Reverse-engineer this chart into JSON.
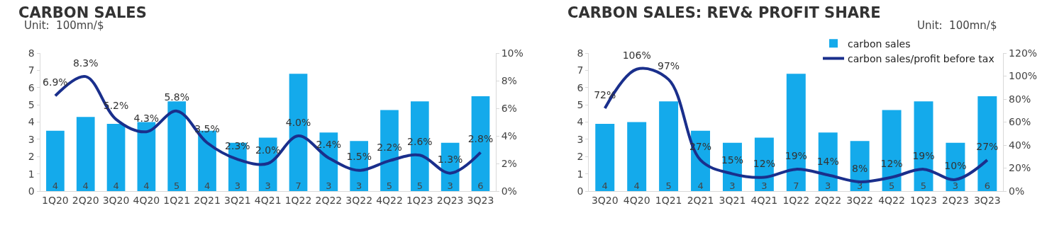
{
  "chart_data": [
    {
      "type": "bar",
      "title": "CARBON SALES",
      "annotations": [
        "Unit:  100mn/$"
      ],
      "categories": [
        "1Q20",
        "2Q20",
        "3Q20",
        "4Q20",
        "1Q21",
        "2Q21",
        "3Q21",
        "4Q21",
        "1Q22",
        "2Q22",
        "3Q22",
        "4Q22",
        "1Q23",
        "2Q23",
        "3Q23"
      ],
      "series": [
        {
          "color": "#14aaeb",
          "values": [
            3.5,
            4.3,
            3.9,
            4.0,
            5.2,
            3.5,
            2.8,
            3.1,
            6.8,
            3.4,
            2.9,
            4.7,
            5.2,
            2.8,
            5.5
          ],
          "value_labels": [
            "4",
            "4",
            "4",
            "4",
            "5",
            "4",
            "3",
            "3",
            "7",
            "3",
            "3",
            "5",
            "5",
            "3",
            "6"
          ]
        },
        {
          "type": "line",
          "axis": "y2",
          "color": "#1a2f8c",
          "values": [
            6.9,
            8.3,
            5.2,
            4.3,
            5.8,
            3.5,
            2.3,
            2.0,
            4.0,
            2.4,
            1.5,
            2.2,
            2.6,
            1.3,
            2.8
          ],
          "value_labels": [
            "6.9%",
            "8.3%",
            "5.2%",
            "4.3%",
            "5.8%",
            "3.5%",
            "2.3%",
            "2.0%",
            "4.0%",
            "2.4%",
            "1.5%",
            "2.2%",
            "2.6%",
            "1.3%",
            "2.8%"
          ]
        }
      ],
      "ylim": [
        0,
        8
      ],
      "yticks": [
        0,
        1,
        2,
        3,
        4,
        5,
        6,
        7,
        8
      ],
      "y2lim": [
        0,
        10
      ],
      "y2ticks": [
        {
          "value": 0,
          "label": "0%"
        },
        {
          "value": 2,
          "label": "2%"
        },
        {
          "value": 4,
          "label": "4%"
        },
        {
          "value": 6,
          "label": "6%"
        },
        {
          "value": 8,
          "label": "8%"
        },
        {
          "value": 10,
          "label": "10%"
        }
      ],
      "legend": false
    },
    {
      "type": "bar",
      "title": "CARBON SALES: REV& PROFIT SHARE",
      "annotations": [
        "Unit:  100mn/$"
      ],
      "categories": [
        "3Q20",
        "4Q20",
        "1Q21",
        "2Q21",
        "3Q21",
        "4Q21",
        "1Q22",
        "2Q22",
        "3Q22",
        "4Q22",
        "1Q23",
        "2Q23",
        "3Q23"
      ],
      "series": [
        {
          "name": "carbon sales",
          "color": "#14aaeb",
          "values": [
            3.9,
            4.0,
            5.2,
            3.5,
            2.8,
            3.1,
            6.8,
            3.4,
            2.9,
            4.7,
            5.2,
            2.8,
            5.5
          ],
          "value_labels": [
            "4",
            "4",
            "5",
            "4",
            "3",
            "3",
            "7",
            "3",
            "3",
            "5",
            "5",
            "3",
            "6"
          ]
        },
        {
          "type": "line",
          "axis": "y2",
          "name": "carbon sales/profit before tax",
          "color": "#1a2f8c",
          "values": [
            72,
            106,
            97,
            27,
            15,
            12,
            19,
            14,
            8,
            12,
            19,
            10,
            27
          ],
          "value_labels": [
            "72%",
            "106%",
            "97%",
            "27%",
            "15%",
            "12%",
            "19%",
            "14%",
            "8%",
            "12%",
            "19%",
            "10%",
            "27%"
          ]
        }
      ],
      "ylim": [
        0,
        8
      ],
      "yticks": [
        0,
        1,
        2,
        3,
        4,
        5,
        6,
        7,
        8
      ],
      "y2lim": [
        0,
        120
      ],
      "y2ticks": [
        {
          "value": 0,
          "label": "0%"
        },
        {
          "value": 20,
          "label": "20%"
        },
        {
          "value": 40,
          "label": "40%"
        },
        {
          "value": 60,
          "label": "60%"
        },
        {
          "value": 80,
          "label": "80%"
        },
        {
          "value": 100,
          "label": "100%"
        },
        {
          "value": 120,
          "label": "120%"
        }
      ],
      "legend": "top right"
    }
  ]
}
